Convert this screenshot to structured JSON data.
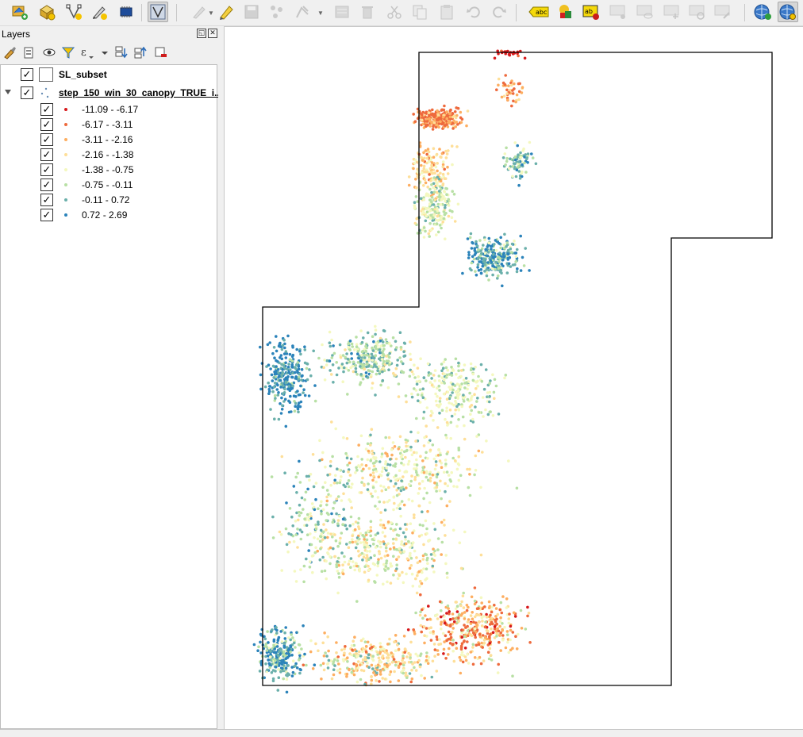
{
  "panel": {
    "title": "Layers",
    "float_glyph": "◱",
    "close_glyph": "✕"
  },
  "layers": [
    {
      "name": "SL_subset",
      "checked": true,
      "symbol": "empty-polygon"
    },
    {
      "name": "step_150_win_30_canopy_TRUE_i...",
      "checked": true,
      "expanded": true,
      "symbol": "graduated-points"
    }
  ],
  "legend": [
    {
      "label": "-11.09 - -6.17",
      "color": "#d7191c",
      "checked": true
    },
    {
      "label": "-6.17 - -3.11",
      "color": "#ee6a3d",
      "checked": true
    },
    {
      "label": "-3.11 - -2.16",
      "color": "#fdae61",
      "checked": true
    },
    {
      "label": "-2.16 - -1.38",
      "color": "#fedf99",
      "checked": true
    },
    {
      "label": "-1.38 - -0.75",
      "color": "#f4f8bf",
      "checked": true
    },
    {
      "label": "-0.75 - -0.11",
      "color": "#b8e0a5",
      "checked": true
    },
    {
      "label": "-0.11 - 0.72",
      "color": "#6bb0ab",
      "checked": true
    },
    {
      "label": "0.72 - 2.69",
      "color": "#2b83ba",
      "checked": true
    }
  ],
  "checkmark": "✓",
  "toolbar_icons": [
    "add-project-icon",
    "new-geopackage-icon",
    "digitize-vertex-icon",
    "digitize-pen-icon",
    "raster-chip-icon",
    "vertex-tool-icon",
    "edit-pencil-icon",
    "toggle-edit-icon",
    "save-edits-icon",
    "add-point-feature-icon",
    "node-tool-icon",
    "modify-attributes-icon",
    "delete-selected-icon",
    "cut-features-icon",
    "copy-features-icon",
    "paste-features-icon",
    "undo-icon",
    "redo-icon",
    "label-toolbar-icon",
    "diagram-icon",
    "layer-labeling-icon",
    "pin-labels-icon",
    "show-hide-labels-icon",
    "move-label-icon",
    "rotate-label-icon",
    "change-label-icon",
    "globe-plus-icon",
    "globe-search-icon"
  ],
  "colors": {
    "boundary": "#000000",
    "canvas": "#ffffff"
  }
}
